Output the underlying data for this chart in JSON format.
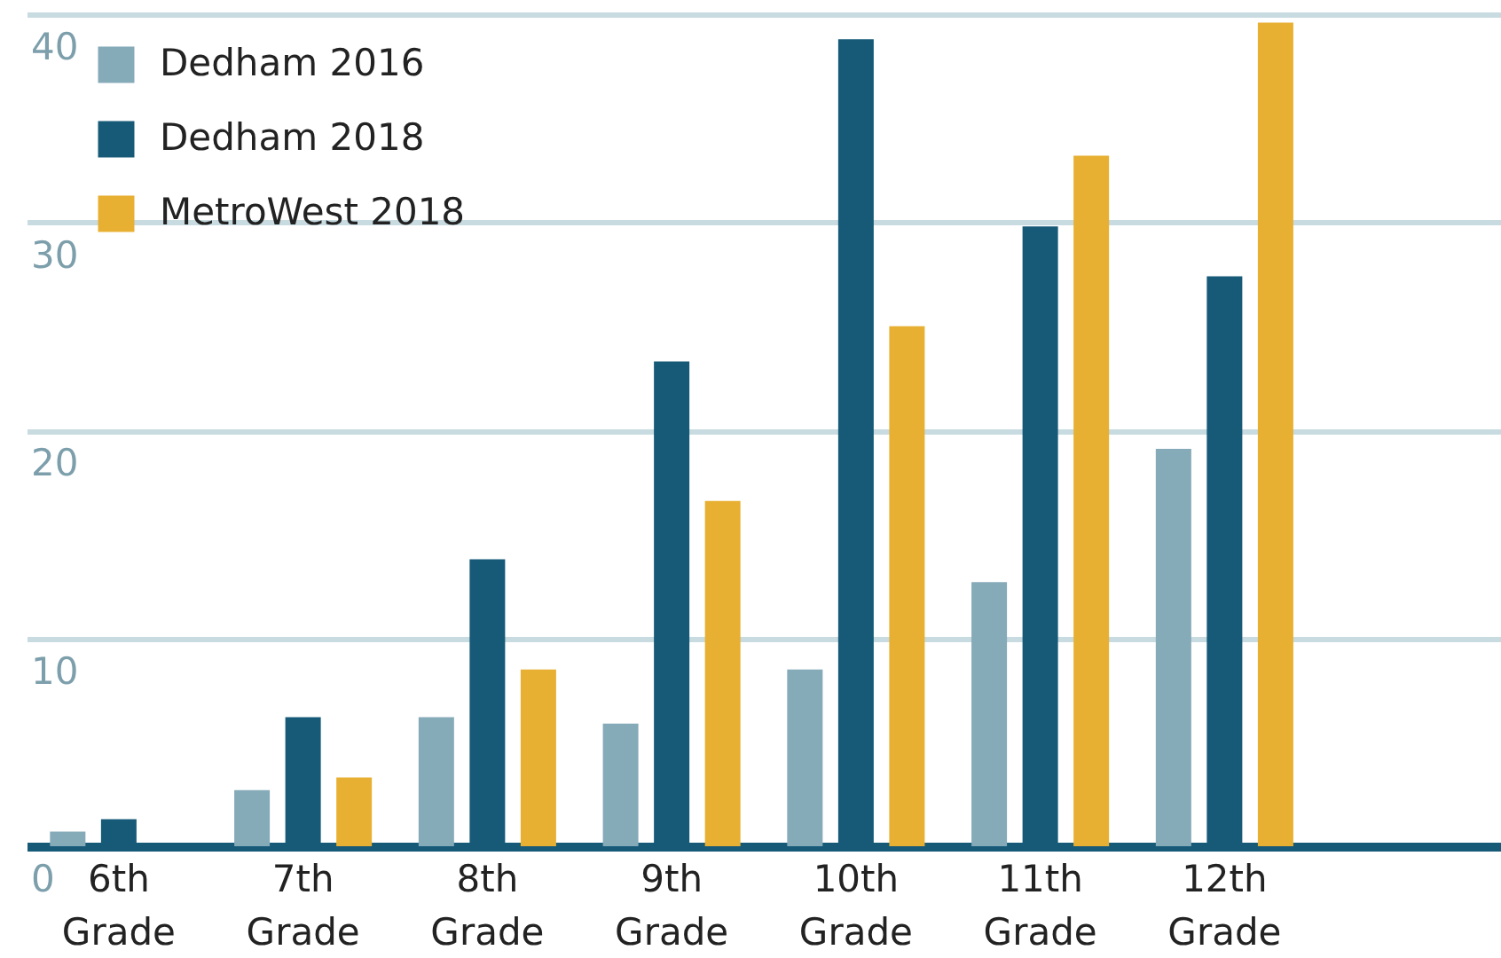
{
  "chart_data": {
    "type": "bar",
    "categories": [
      "6th Grade",
      "7th Grade",
      "8th Grade",
      "9th Grade",
      "10th Grade",
      "11th Grade",
      "12th Grade",
      null
    ],
    "series": [
      {
        "name": "Dedham 2016",
        "color": "#85aab8",
        "values": [
          0.7,
          2.7,
          6.2,
          5.9,
          8.5,
          12.7,
          19.1,
          null
        ]
      },
      {
        "name": "Dedham 2018",
        "color": "#165a78",
        "values": [
          1.3,
          6.2,
          13.8,
          23.3,
          38.8,
          29.8,
          27.4,
          null
        ]
      },
      {
        "name": "MetroWest 2018",
        "color": "#e8b033",
        "values": [
          null,
          3.3,
          8.5,
          16.6,
          25.0,
          33.2,
          39.6,
          null
        ]
      }
    ],
    "ylim": [
      0,
      40
    ],
    "yticks": [
      0,
      10,
      20,
      30,
      40
    ],
    "grid": "y",
    "legend": "top left"
  }
}
